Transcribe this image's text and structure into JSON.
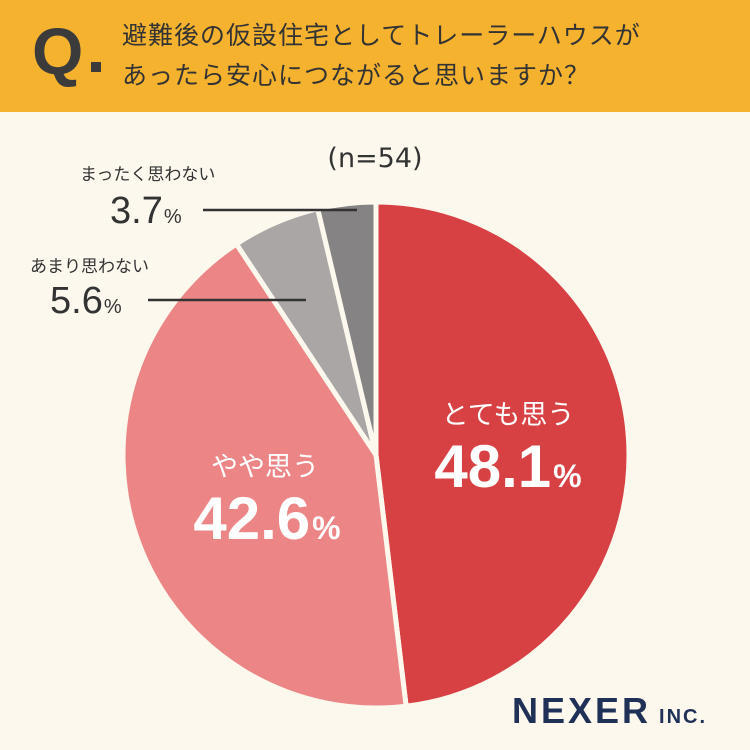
{
  "header": {
    "q_mark": "Q",
    "question_line1": "避難後の仮設住宅としてトレーラーハウスが",
    "question_line2": "あったら安心につながると思いますか？"
  },
  "n_label": "(n=54)",
  "brand": {
    "main": "NEXER",
    "sub": "INC."
  },
  "colors": {
    "header_bg": "#f4b22f",
    "page_bg": "#fcf8ee",
    "strongly_agree": "#d84144",
    "agree": "#ec8686",
    "disagree": "#aaa6a6",
    "strongly_disagree": "#858383",
    "brand": "#1f3156"
  },
  "chart_data": {
    "type": "pie",
    "unit": "%",
    "slices": [
      {
        "label": "とても思う",
        "value": 48.1,
        "color": "#d84144"
      },
      {
        "label": "やや思う",
        "value": 42.6,
        "color": "#ec8686"
      },
      {
        "label": "あまり思わない",
        "value": 5.6,
        "color": "#aaa6a6"
      },
      {
        "label": "まったく思わない",
        "value": 3.7,
        "color": "#858383"
      }
    ]
  }
}
